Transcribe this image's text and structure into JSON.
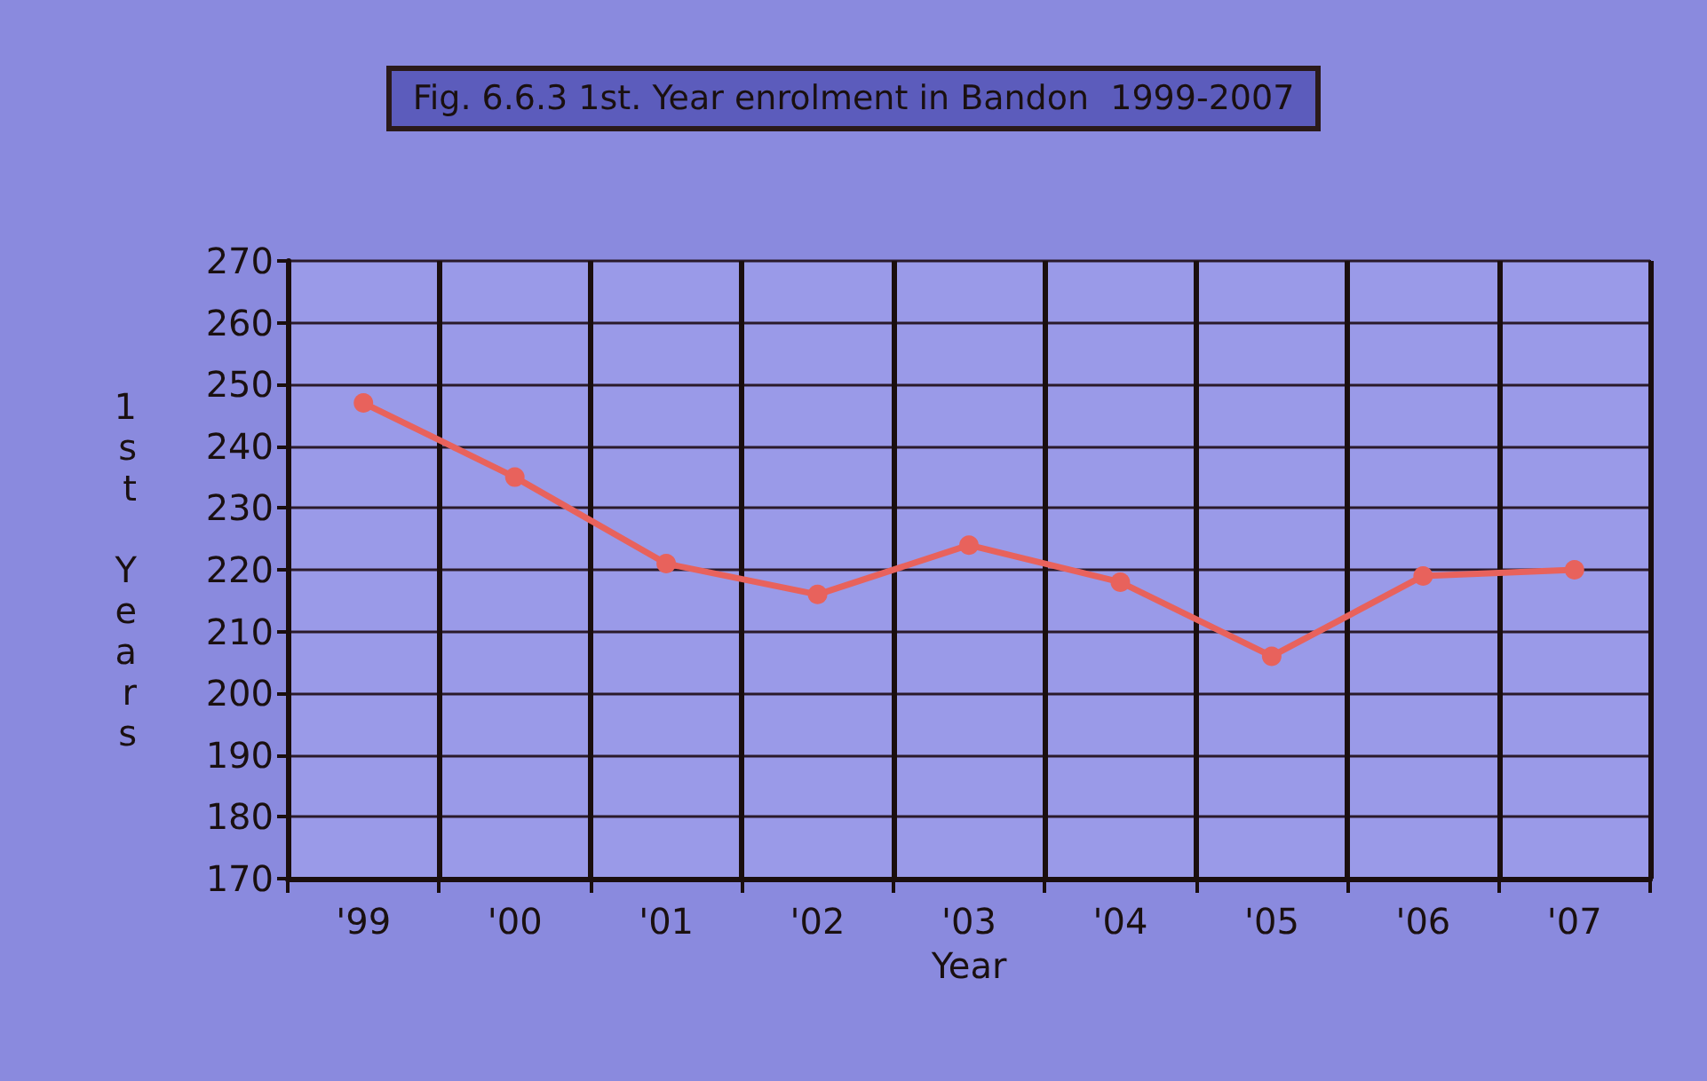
{
  "chart_data": {
    "type": "line",
    "title": "Fig. 6.6.3 1st. Year enrolment in Bandon  1999-2007",
    "xlabel": "Year",
    "ylabel": "1st Years",
    "categories": [
      "'99",
      "'00",
      "'01",
      "'02",
      "'03",
      "'04",
      "'05",
      "'06",
      "'07"
    ],
    "series": [
      {
        "color": "#e8625c",
        "values": [
          247,
          235,
          221,
          216,
          224,
          218,
          206,
          219,
          220
        ]
      }
    ],
    "ylim": [
      170,
      270
    ],
    "yticks": [
      170,
      180,
      190,
      200,
      210,
      220,
      230,
      240,
      250,
      260,
      270
    ],
    "grid": true,
    "marker": "circle",
    "line_style": "solid"
  }
}
